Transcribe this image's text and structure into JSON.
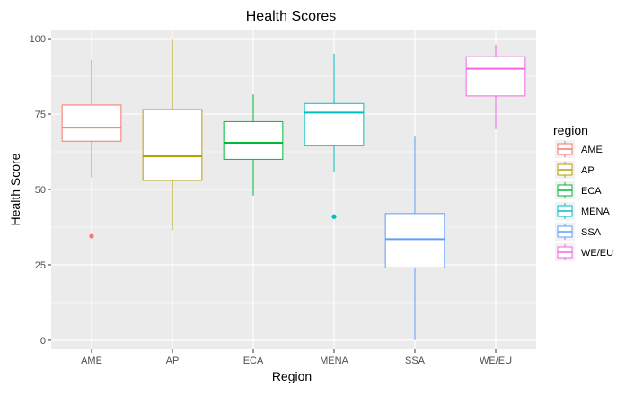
{
  "chart_data": {
    "type": "box",
    "title": "Health Scores",
    "xlabel": "Region",
    "ylabel": "Health Score",
    "ylim": [
      -3,
      103
    ],
    "yticks": [
      0,
      25,
      50,
      75,
      100
    ],
    "grid": true,
    "legend": {
      "title": "region",
      "position": "right"
    },
    "colors": {
      "panel": "#ebebeb",
      "grid": "#ffffff"
    },
    "categories": [
      "AME",
      "AP",
      "ECA",
      "MENA",
      "SSA",
      "WE/EU"
    ],
    "series": [
      {
        "name": "AME",
        "color": "#F8766D",
        "min": 54,
        "q1": 66,
        "median": 70.5,
        "q3": 78,
        "max": 93,
        "outliers": [
          34.5
        ]
      },
      {
        "name": "AP",
        "color": "#B79F00",
        "min": 36.5,
        "q1": 53,
        "median": 61,
        "q3": 76.5,
        "max": 100,
        "outliers": []
      },
      {
        "name": "ECA",
        "color": "#00BA38",
        "min": 48,
        "q1": 60,
        "median": 65.5,
        "q3": 72.5,
        "max": 81.5,
        "outliers": []
      },
      {
        "name": "MENA",
        "color": "#00BFC4",
        "min": 56,
        "q1": 64.5,
        "median": 75.5,
        "q3": 78.5,
        "max": 95,
        "outliers": [
          41
        ]
      },
      {
        "name": "SSA",
        "color": "#619CFF",
        "min": 0,
        "q1": 24,
        "median": 33.5,
        "q3": 42,
        "max": 67.5,
        "outliers": []
      },
      {
        "name": "WE/EU",
        "color": "#F564E3",
        "min": 70,
        "q1": 81,
        "median": 90,
        "q3": 94,
        "max": 98,
        "outliers": []
      }
    ]
  }
}
